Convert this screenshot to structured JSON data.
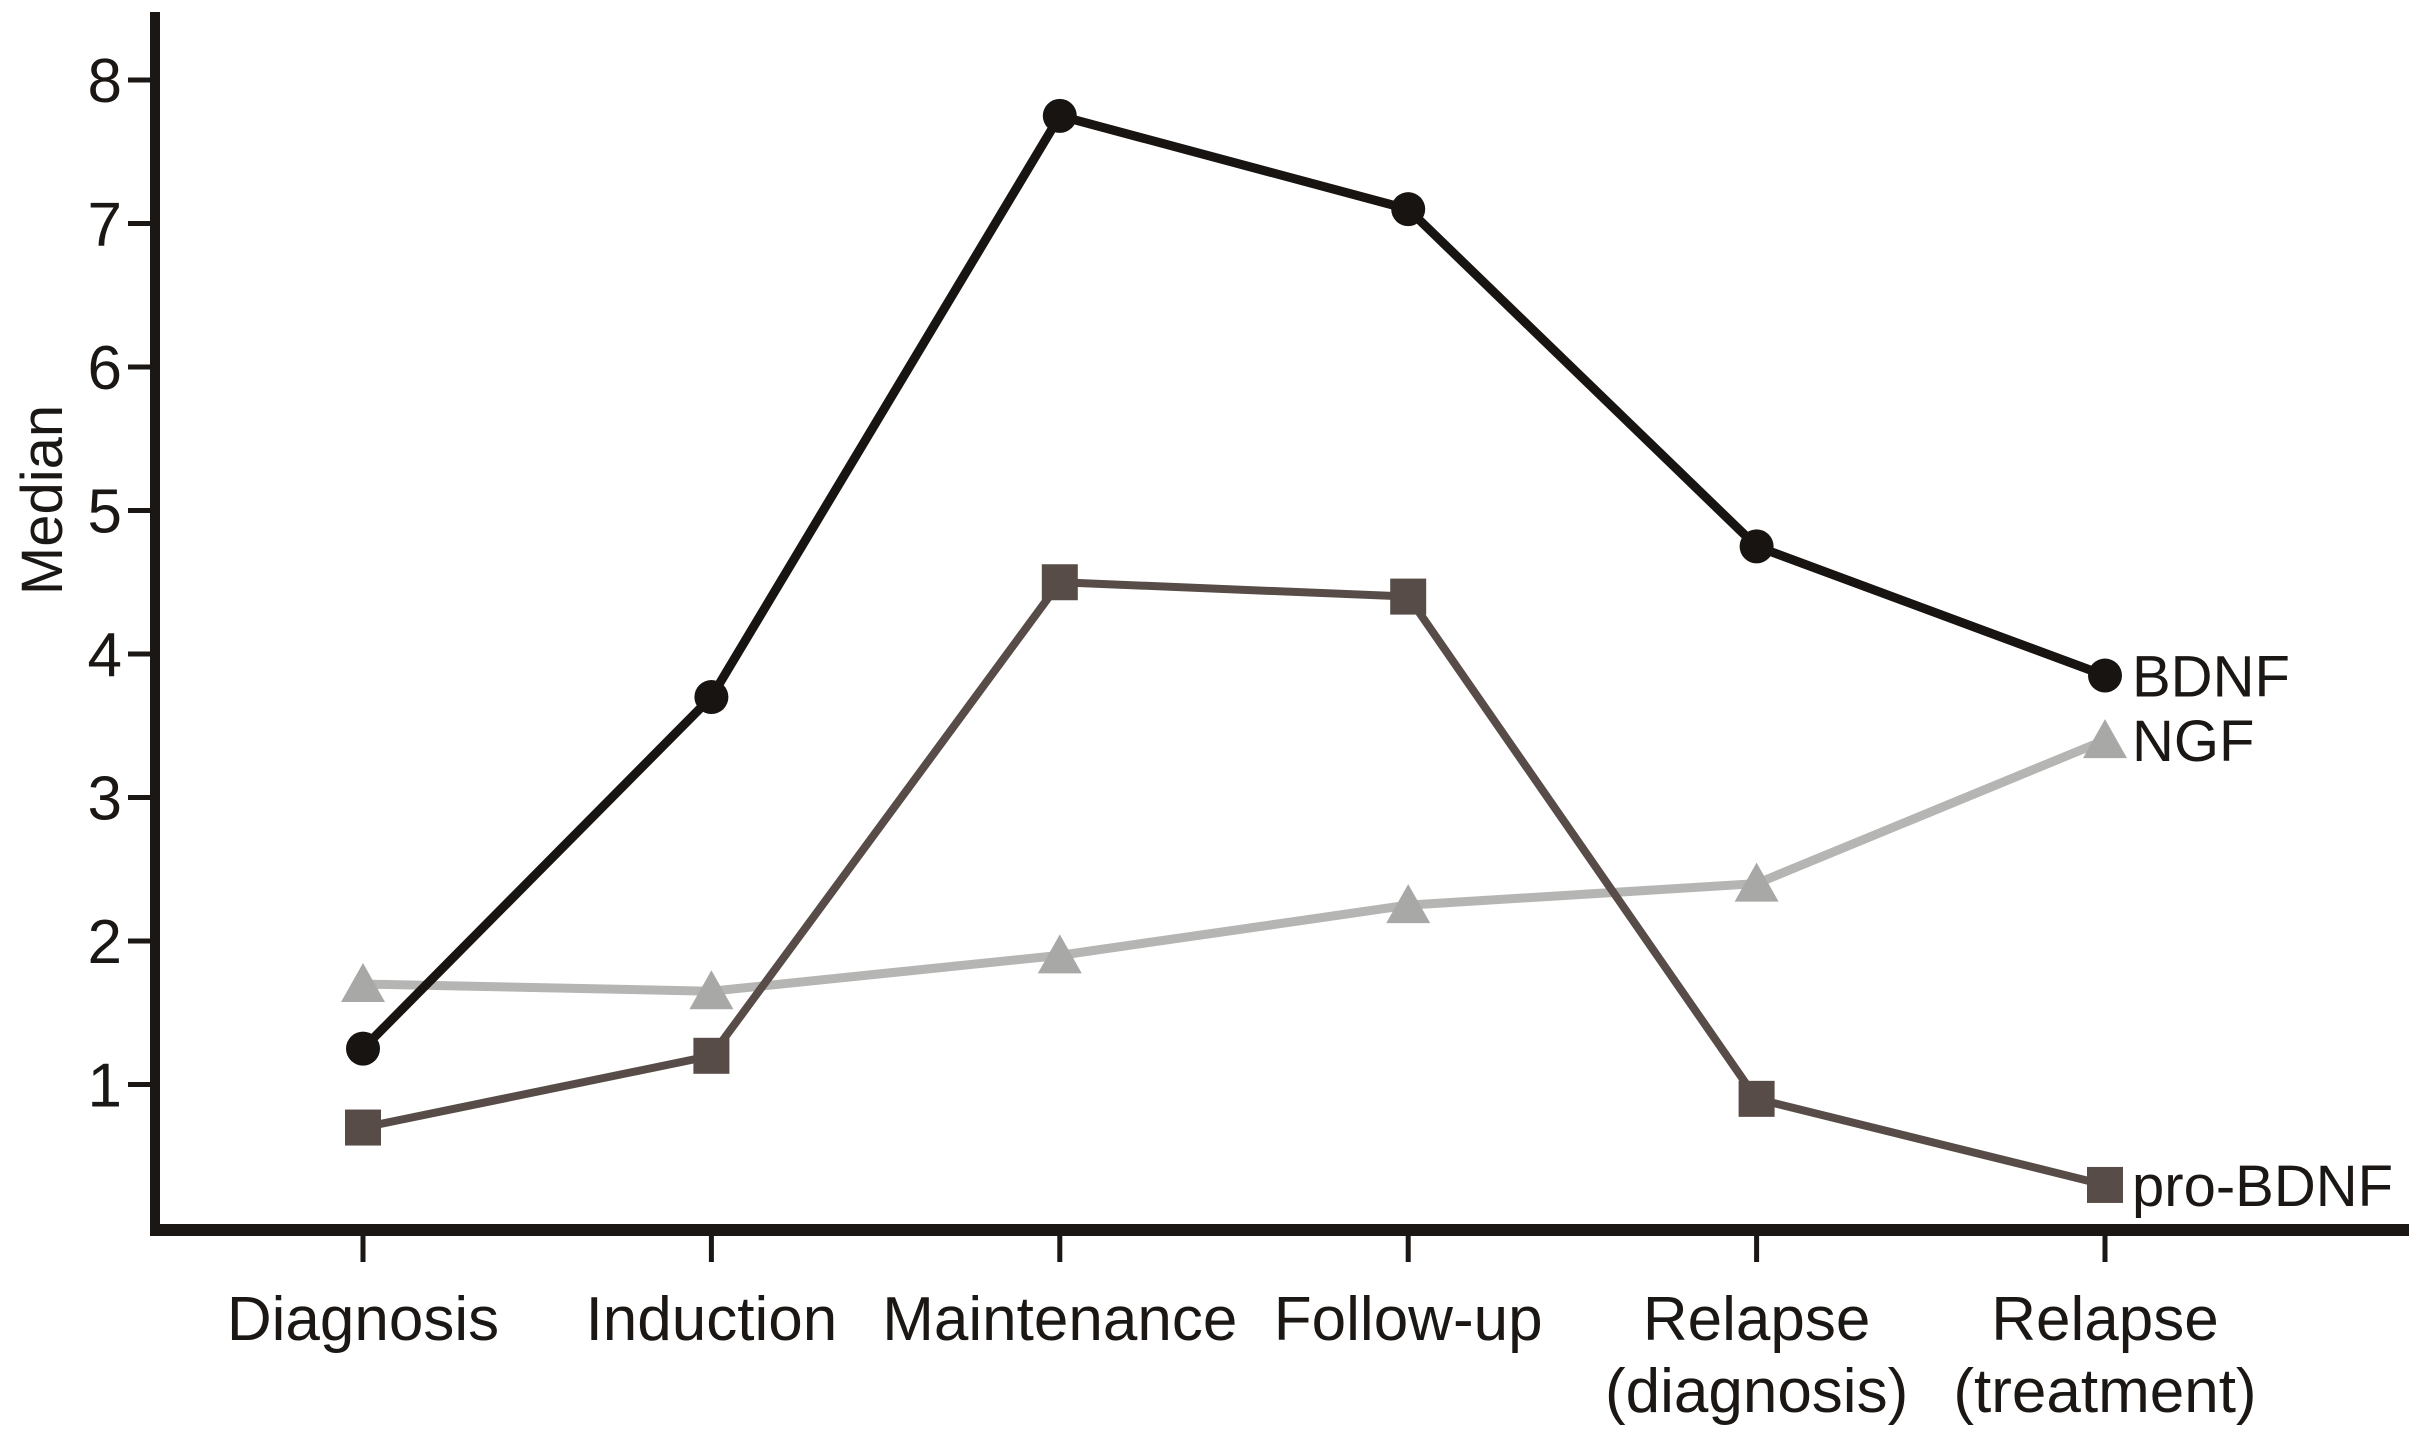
{
  "chart_data": {
    "type": "line",
    "title": "",
    "xlabel": "",
    "ylabel": "Median",
    "ylim": [
      0,
      8.5
    ],
    "grid": false,
    "legend_position": "inline labels at right end of each line",
    "background_color": "#ffffff",
    "axis_color": "#1b1714",
    "y_ticks": [
      8,
      7,
      6,
      5,
      4,
      3,
      2,
      1
    ],
    "categories": [
      {
        "lines": [
          "Diagnosis"
        ]
      },
      {
        "lines": [
          "Induction"
        ]
      },
      {
        "lines": [
          "Maintenance"
        ]
      },
      {
        "lines": [
          "Follow-up"
        ]
      },
      {
        "lines": [
          "Relapse",
          "(diagnosis)"
        ]
      },
      {
        "lines": [
          "Relapse",
          "(treatment)"
        ]
      }
    ],
    "series": [
      {
        "name": "NGF",
        "marker": "triangle",
        "line_color": "#b5b5b3",
        "marker_color": "#a8a8a6",
        "line_width": 9,
        "values": [
          1.7,
          1.65,
          1.9,
          2.25,
          2.4,
          3.4
        ]
      },
      {
        "name": "pro-BDNF",
        "marker": "square",
        "line_color": "#574c47",
        "marker_color": "#574c47",
        "line_width": 8,
        "values": [
          0.7,
          1.2,
          4.5,
          4.4,
          0.9,
          0.3
        ]
      },
      {
        "name": "BDNF",
        "marker": "circle",
        "line_color": "#181411",
        "marker_color": "#181411",
        "line_width": 9,
        "values": [
          1.25,
          3.7,
          7.75,
          7.1,
          4.75,
          3.85
        ]
      }
    ]
  }
}
